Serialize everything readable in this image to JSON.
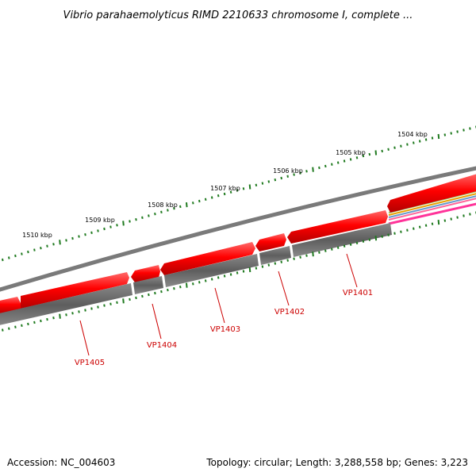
{
  "title": "Vibrio parahaemolyticus RIMD 2210633 chromosome I, complete ...",
  "footer": {
    "accession": "Accession: NC_004603",
    "summary": "Topology: circular; Length: 3,288,558 bp; Genes: 3,223"
  },
  "colors": {
    "gene_forward": "#ff0000",
    "gene_reverse": "#6e6e6e",
    "backbone": "#7a7a7a",
    "ticks": "#1f7a1f",
    "gene_label": "#cc0000"
  },
  "tick_labels": [
    "1504 kbp",
    "1505 kbp",
    "1506 kbp",
    "1507 kbp",
    "1508 kbp",
    "1509 kbp",
    "1510 kbp"
  ],
  "genes": [
    {
      "label": "VP1401"
    },
    {
      "label": "VP1402"
    },
    {
      "label": "VP1403"
    },
    {
      "label": "VP1404"
    },
    {
      "label": "VP1405"
    }
  ]
}
